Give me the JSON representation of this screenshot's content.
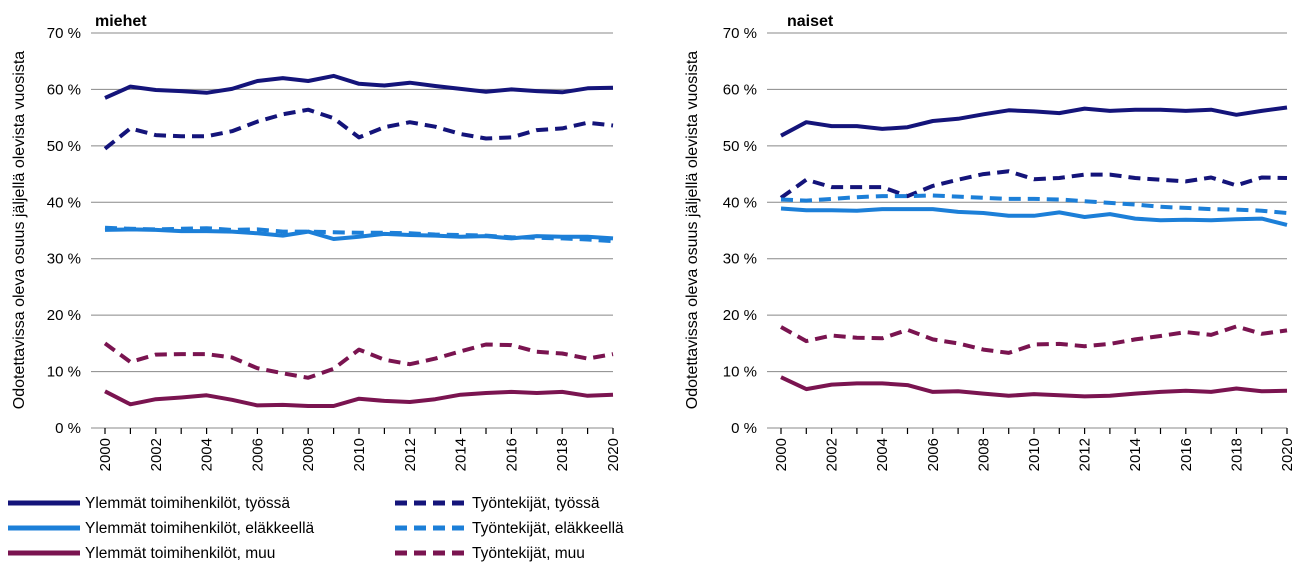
{
  "ylabel": "Odotettavissa oleva osuus jäljellä olevista vuosista",
  "colors": {
    "dark_blue": "#14147a",
    "light_blue": "#1c7fd8",
    "maroon": "#7a1450",
    "grid": "#888888"
  },
  "legend": [
    {
      "label": "Ylemmät toimihenkilöt, työssä",
      "color": "#14147a",
      "dash": false
    },
    {
      "label": "Työntekijät, työssä",
      "color": "#14147a",
      "dash": true
    },
    {
      "label": "Ylemmät toimihenkilöt, eläkkeellä",
      "color": "#1c7fd8",
      "dash": false
    },
    {
      "label": "Työntekijät, eläkkeellä",
      "color": "#1c7fd8",
      "dash": true
    },
    {
      "label": "Ylemmät toimihenkilöt, muu",
      "color": "#7a1450",
      "dash": false
    },
    {
      "label": "Työntekijät, muu",
      "color": "#7a1450",
      "dash": true
    }
  ],
  "chart_data": [
    {
      "type": "line",
      "title": "miehet",
      "ylim": [
        0,
        70
      ],
      "yticks": [
        "0 %",
        "10 %",
        "20 %",
        "30 %",
        "40 %",
        "50 %",
        "60 %",
        "70 %"
      ],
      "xticks": [
        "2000",
        "2002",
        "2004",
        "2006",
        "2008",
        "2010",
        "2012",
        "2014",
        "2016",
        "2018",
        "2020"
      ],
      "x": [
        2000,
        2001,
        2002,
        2003,
        2004,
        2005,
        2006,
        2007,
        2008,
        2009,
        2010,
        2011,
        2012,
        2013,
        2014,
        2015,
        2016,
        2017,
        2018,
        2019,
        2020
      ],
      "grid": true,
      "series": [
        {
          "name": "Ylemmät toimihenkilöt, työssä",
          "values": [
            58.5,
            60.5,
            59.9,
            59.7,
            59.4,
            60.1,
            61.5,
            62.0,
            61.5,
            62.4,
            61.0,
            60.7,
            61.2,
            60.6,
            60.1,
            59.6,
            60.0,
            59.7,
            59.5,
            60.2,
            60.3
          ]
        },
        {
          "name": "Työntekijät, työssä",
          "values": [
            49.5,
            53.1,
            51.9,
            51.7,
            51.7,
            52.6,
            54.3,
            55.6,
            56.4,
            54.9,
            51.5,
            53.3,
            54.2,
            53.4,
            52.1,
            51.3,
            51.5,
            52.8,
            53.1,
            54.1,
            53.6
          ]
        },
        {
          "name": "Ylemmät toimihenkilöt, eläkkeellä",
          "values": [
            35.1,
            35.2,
            35.1,
            34.9,
            34.9,
            34.8,
            34.5,
            34.1,
            34.8,
            33.5,
            33.9,
            34.4,
            34.2,
            34.1,
            33.9,
            34.0,
            33.6,
            34.0,
            33.9,
            33.9,
            33.6
          ]
        },
        {
          "name": "Työntekijät, eläkkeellä",
          "values": [
            35.5,
            35.3,
            35.2,
            35.3,
            35.4,
            35.1,
            35.2,
            34.8,
            34.8,
            34.7,
            34.6,
            34.6,
            34.5,
            34.3,
            34.2,
            34.1,
            33.8,
            33.7,
            33.6,
            33.4,
            33.1
          ]
        },
        {
          "name": "Ylemmät toimihenkilöt, muu",
          "values": [
            6.5,
            4.2,
            5.1,
            5.4,
            5.8,
            5.0,
            4.0,
            4.1,
            3.9,
            3.9,
            5.2,
            4.8,
            4.6,
            5.1,
            5.9,
            6.2,
            6.4,
            6.2,
            6.4,
            5.7,
            5.9
          ]
        },
        {
          "name": "Työntekijät, muu",
          "values": [
            15.0,
            11.7,
            13.0,
            13.1,
            13.1,
            12.5,
            10.6,
            9.7,
            8.9,
            10.5,
            13.9,
            12.1,
            11.3,
            12.3,
            13.6,
            14.8,
            14.7,
            13.5,
            13.2,
            12.3,
            13.1
          ]
        }
      ]
    },
    {
      "type": "line",
      "title": "naiset",
      "ylim": [
        0,
        70
      ],
      "yticks": [
        "0 %",
        "10 %",
        "20 %",
        "30 %",
        "40 %",
        "50 %",
        "60 %",
        "70 %"
      ],
      "xticks": [
        "2000",
        "2002",
        "2004",
        "2006",
        "2008",
        "2010",
        "2012",
        "2014",
        "2016",
        "2018",
        "2020"
      ],
      "x": [
        2000,
        2001,
        2002,
        2003,
        2004,
        2005,
        2006,
        2007,
        2008,
        2009,
        2010,
        2011,
        2012,
        2013,
        2014,
        2015,
        2016,
        2017,
        2018,
        2019,
        2020
      ],
      "grid": true,
      "series": [
        {
          "name": "Ylemmät toimihenkilöt, työssä",
          "values": [
            51.8,
            54.2,
            53.5,
            53.5,
            53.0,
            53.3,
            54.4,
            54.8,
            55.6,
            56.3,
            56.1,
            55.8,
            56.6,
            56.2,
            56.4,
            56.4,
            56.2,
            56.4,
            55.5,
            56.2,
            56.8
          ]
        },
        {
          "name": "Työntekijät, työssä",
          "values": [
            40.8,
            44.0,
            42.7,
            42.7,
            42.7,
            41.1,
            42.9,
            44.0,
            45.0,
            45.5,
            44.1,
            44.3,
            44.9,
            44.9,
            44.3,
            44.0,
            43.7,
            44.4,
            43.0,
            44.4,
            44.3
          ]
        },
        {
          "name": "Ylemmät toimihenkilöt, eläkkeellä",
          "values": [
            38.9,
            38.6,
            38.6,
            38.5,
            38.8,
            38.8,
            38.8,
            38.3,
            38.1,
            37.6,
            37.6,
            38.2,
            37.4,
            37.9,
            37.1,
            36.8,
            36.9,
            36.8,
            37.0,
            37.1,
            36.0
          ]
        },
        {
          "name": "Työntekijät, eläkkeellä",
          "values": [
            40.5,
            40.3,
            40.6,
            40.9,
            41.1,
            41.1,
            41.2,
            41.0,
            40.8,
            40.6,
            40.6,
            40.5,
            40.2,
            39.9,
            39.6,
            39.2,
            39.0,
            38.8,
            38.7,
            38.5,
            38.1
          ]
        },
        {
          "name": "Ylemmät toimihenkilöt, muu",
          "values": [
            9.0,
            6.9,
            7.7,
            7.9,
            7.9,
            7.6,
            6.4,
            6.5,
            6.1,
            5.7,
            6.0,
            5.8,
            5.6,
            5.7,
            6.1,
            6.4,
            6.6,
            6.4,
            7.0,
            6.5,
            6.6
          ]
        },
        {
          "name": "Työntekijät, muu",
          "values": [
            17.9,
            15.4,
            16.4,
            16.0,
            15.9,
            17.4,
            15.7,
            15.0,
            13.9,
            13.3,
            14.8,
            14.9,
            14.5,
            14.9,
            15.7,
            16.3,
            17.0,
            16.5,
            18.0,
            16.7,
            17.3
          ]
        }
      ]
    }
  ]
}
